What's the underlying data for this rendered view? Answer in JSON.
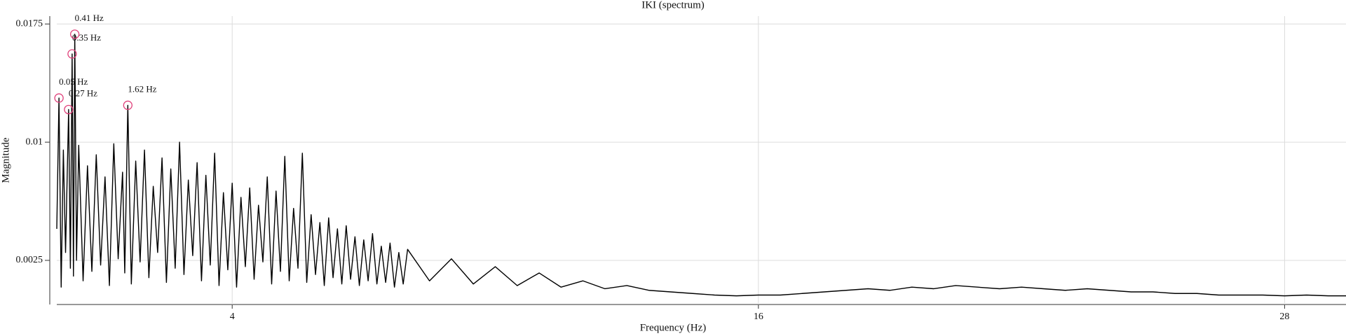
{
  "chart_data": {
    "type": "line",
    "title": "IKI (spectrum)",
    "xlabel": "Frequency (Hz)",
    "ylabel": "Magnitude",
    "color": "#000000",
    "grid": true,
    "xlim": [
      0,
      29.4
    ],
    "ylim": [
      -0.0003,
      0.018
    ],
    "xticks": [
      4,
      16,
      28
    ],
    "yticks": [
      0.0025,
      0.01,
      0.0175
    ],
    "x": [
      0,
      0.05,
      0.1,
      0.15,
      0.2,
      0.27,
      0.31,
      0.35,
      0.38,
      0.41,
      0.45,
      0.5,
      0.6,
      0.7,
      0.8,
      0.9,
      1.0,
      1.1,
      1.2,
      1.3,
      1.4,
      1.5,
      1.55,
      1.62,
      1.7,
      1.8,
      1.9,
      2.0,
      2.1,
      2.2,
      2.3,
      2.4,
      2.5,
      2.6,
      2.7,
      2.8,
      2.9,
      3.0,
      3.1,
      3.2,
      3.3,
      3.4,
      3.5,
      3.6,
      3.7,
      3.8,
      3.9,
      4.0,
      4.1,
      4.2,
      4.3,
      4.4,
      4.5,
      4.6,
      4.7,
      4.8,
      4.9,
      5.0,
      5.1,
      5.2,
      5.3,
      5.4,
      5.5,
      5.6,
      5.7,
      5.8,
      5.9,
      6.0,
      6.1,
      6.2,
      6.3,
      6.4,
      6.5,
      6.6,
      6.7,
      6.8,
      6.9,
      7.0,
      7.1,
      7.2,
      7.3,
      7.4,
      7.5,
      7.6,
      7.7,
      7.8,
      7.9,
      8.0,
      8.5,
      9.0,
      9.5,
      10.0,
      10.5,
      11.0,
      11.5,
      12.0,
      12.5,
      13.0,
      13.5,
      14.0,
      14.5,
      15.0,
      15.5,
      16.0,
      16.5,
      17.0,
      17.5,
      18.0,
      18.5,
      19.0,
      19.5,
      20.0,
      20.5,
      21.0,
      21.5,
      22.0,
      22.5,
      23.0,
      23.5,
      24.0,
      24.5,
      25.0,
      25.5,
      26.0,
      26.5,
      27.0,
      27.5,
      28.0,
      28.5,
      29.0,
      29.4
    ],
    "values": [
      0.0045,
      0.0128,
      0.0008,
      0.0095,
      0.003,
      0.01207,
      0.002,
      0.0156,
      0.0015,
      0.01685,
      0.0025,
      0.0098,
      0.0012,
      0.0085,
      0.0018,
      0.0092,
      0.0022,
      0.0078,
      0.0009,
      0.0099,
      0.0026,
      0.0081,
      0.0017,
      0.01234,
      0.001,
      0.0088,
      0.0024,
      0.0095,
      0.0014,
      0.0072,
      0.003,
      0.009,
      0.0011,
      0.0083,
      0.002,
      0.01,
      0.0016,
      0.0076,
      0.0028,
      0.0087,
      0.0012,
      0.0079,
      0.0022,
      0.0093,
      0.0009,
      0.0068,
      0.0019,
      0.0074,
      0.0008,
      0.0065,
      0.0021,
      0.0071,
      0.0013,
      0.006,
      0.0024,
      0.0078,
      0.001,
      0.0069,
      0.0018,
      0.0091,
      0.0012,
      0.0058,
      0.002,
      0.0093,
      0.0011,
      0.0054,
      0.0016,
      0.0049,
      0.0009,
      0.0052,
      0.0014,
      0.0045,
      0.001,
      0.0047,
      0.0013,
      0.004,
      0.0009,
      0.0038,
      0.0012,
      0.0042,
      0.001,
      0.0034,
      0.0011,
      0.0036,
      0.0008,
      0.003,
      0.001,
      0.0032,
      0.0012,
      0.0026,
      0.001,
      0.0021,
      0.0009,
      0.0017,
      0.0008,
      0.0012,
      0.0007,
      0.0009,
      0.0006,
      0.0005,
      0.0004,
      0.0003,
      0.00025,
      0.0003,
      0.0003,
      0.0004,
      0.0005,
      0.0006,
      0.0007,
      0.0006,
      0.0008,
      0.0007,
      0.0009,
      0.0008,
      0.0007,
      0.0008,
      0.0007,
      0.0006,
      0.0007,
      0.0006,
      0.0005,
      0.0005,
      0.0004,
      0.0004,
      0.0003,
      0.0003,
      0.0003,
      0.00025,
      0.0003,
      0.00025,
      0.00025
    ],
    "peaks": [
      {
        "label": "0.05 Hz",
        "x": 0.05,
        "y": 0.0128,
        "color": "#e0407a"
      },
      {
        "label": "0.27 Hz",
        "x": 0.27,
        "y": 0.01207,
        "color": "#e0407a"
      },
      {
        "label": "0.35 Hz",
        "x": 0.35,
        "y": 0.0156,
        "color": "#e0407a"
      },
      {
        "label": "0.41 Hz",
        "x": 0.41,
        "y": 0.01685,
        "color": "#e0407a"
      },
      {
        "label": "1.62 Hz",
        "x": 1.62,
        "y": 0.01234,
        "color": "#e0407a"
      }
    ]
  }
}
